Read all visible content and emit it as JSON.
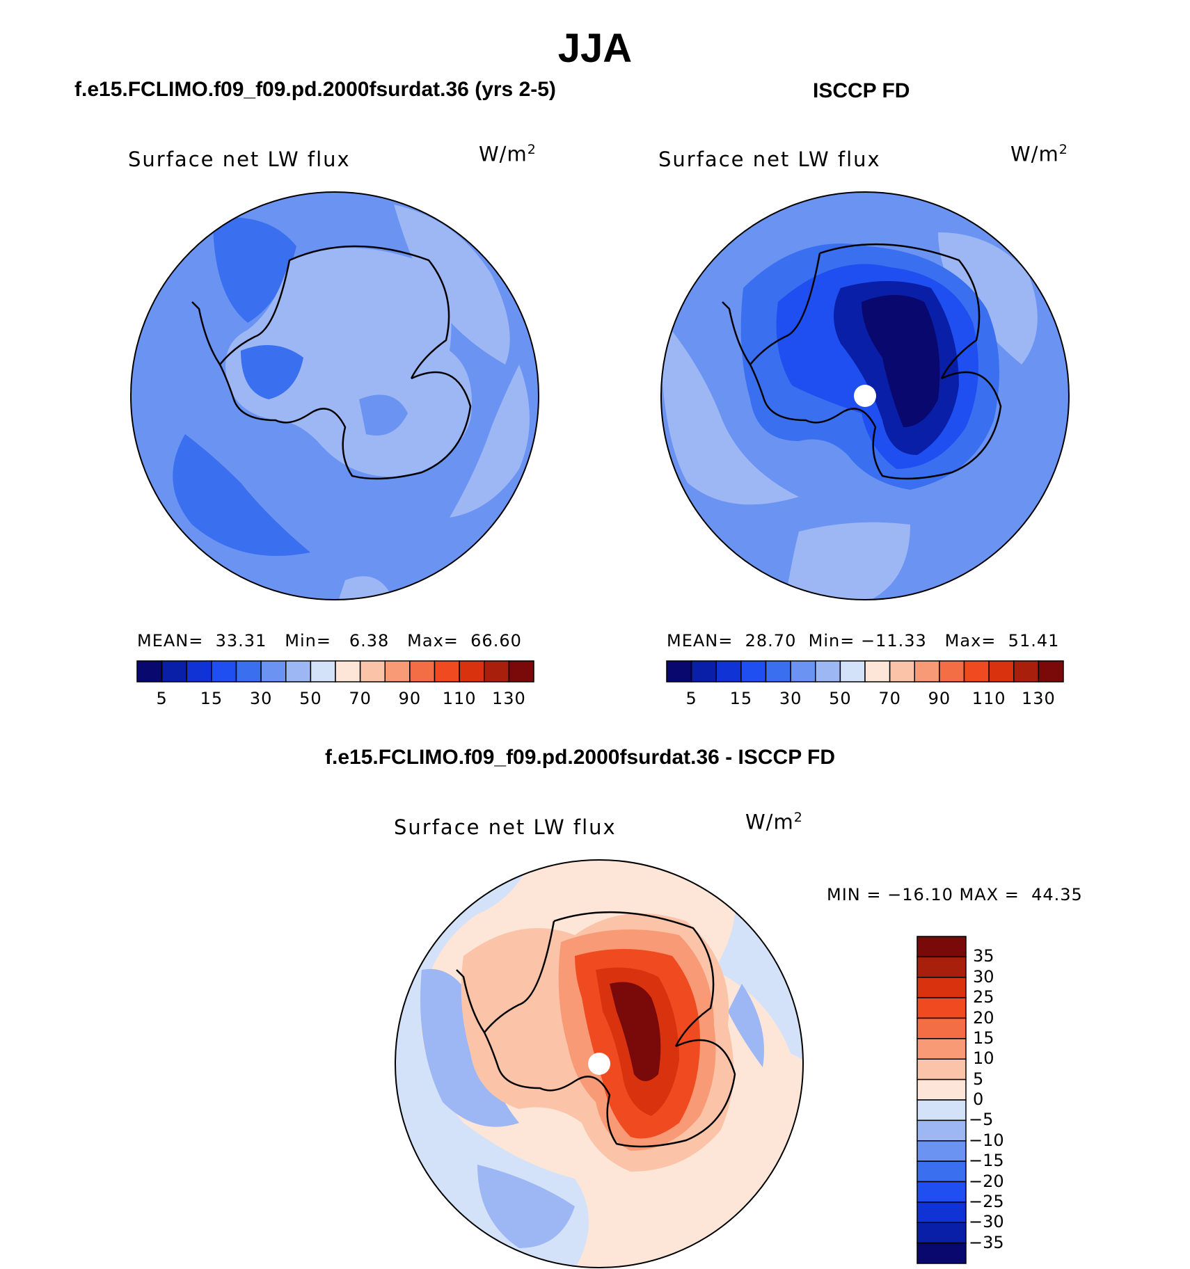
{
  "season": "JJA",
  "panels": {
    "model": {
      "case": "f.e15.FCLIMO.f09_f09.pd.2000fsurdat.36 (yrs 2-5)",
      "variable": "Surface net LW flux",
      "units": "W/m",
      "units_exp": "2",
      "stats": {
        "mean_label": "MEAN=",
        "mean": "33.31",
        "min_label": "Min=",
        "min": "6.38",
        "max_label": "Max=",
        "max": "66.60"
      }
    },
    "obs": {
      "case": "ISCCP FD",
      "variable": "Surface net LW flux",
      "units": "W/m",
      "units_exp": "2",
      "stats": {
        "mean_label": "MEAN=",
        "mean": "28.70",
        "min_label": "Min=",
        "min": "−11.33",
        "max_label": "Max=",
        "max": "51.41"
      }
    },
    "diff": {
      "case": "f.e15.FCLIMO.f09_f09.pd.2000fsurdat.36 - ISCCP FD",
      "variable": "Surface net LW flux",
      "units": "W/m",
      "units_exp": "2",
      "stats_line": "MIN = −16.10 MAX =  44.35"
    }
  },
  "colorbar_abs": {
    "colors": [
      "#08086e",
      "#0a1fa8",
      "#0f33d4",
      "#1f4ff0",
      "#3a6ff0",
      "#6a93f2",
      "#9db7f5",
      "#d3e2f9",
      "#fde6d8",
      "#fbc3a8",
      "#f99a76",
      "#f46e45",
      "#f04a20",
      "#d9320e",
      "#a8200c",
      "#7a0a0a"
    ],
    "tick_labels": [
      "5",
      "15",
      "30",
      "50",
      "70",
      "90",
      "110",
      "130"
    ]
  },
  "colorbar_diff": {
    "colors": [
      "#7a0a0a",
      "#a8200c",
      "#d9320e",
      "#f04a20",
      "#f46e45",
      "#f99a76",
      "#fbc3a8",
      "#fde6d8",
      "#d3e2f9",
      "#9db7f5",
      "#6a93f2",
      "#3a6ff0",
      "#1f4ff0",
      "#0f33d4",
      "#0a1fa8",
      "#08086e"
    ],
    "tick_labels": [
      "35",
      "30",
      "25",
      "20",
      "15",
      "10",
      "5",
      "0",
      "−5",
      "−10",
      "−15",
      "−20",
      "−25",
      "−30",
      "−35"
    ]
  }
}
